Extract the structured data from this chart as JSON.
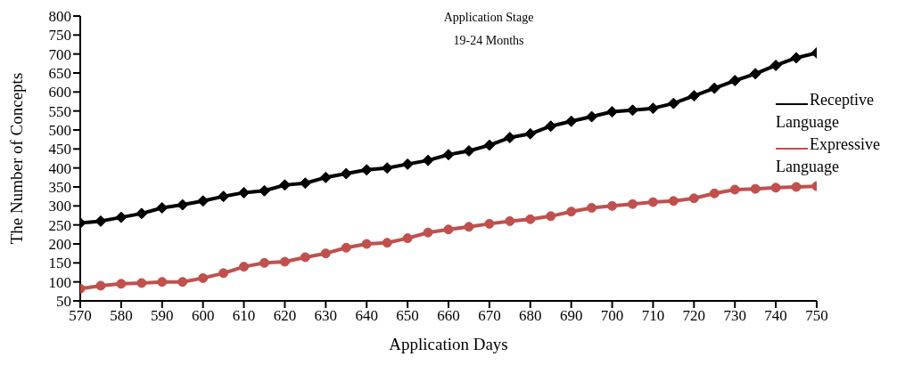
{
  "chart_data": {
    "type": "line",
    "title": "Application Stage",
    "subtitle": "19-24 Months",
    "xlabel": "Application Days",
    "ylabel": "The Number of Concepts",
    "x": [
      570,
      575,
      580,
      585,
      590,
      595,
      600,
      605,
      610,
      615,
      620,
      625,
      630,
      635,
      640,
      645,
      650,
      655,
      660,
      665,
      670,
      675,
      680,
      685,
      690,
      695,
      700,
      705,
      710,
      715,
      720,
      725,
      730,
      735,
      740,
      745,
      750
    ],
    "series": [
      {
        "name": "Receptive Language",
        "color": "#000000",
        "marker": "diamond",
        "values": [
          255,
          260,
          270,
          280,
          295,
          303,
          313,
          325,
          335,
          340,
          355,
          360,
          375,
          385,
          395,
          400,
          410,
          420,
          435,
          445,
          460,
          480,
          490,
          510,
          523,
          535,
          548,
          552,
          557,
          570,
          590,
          610,
          630,
          648,
          670,
          690,
          703
        ]
      },
      {
        "name": "Expressive Language",
        "color": "#c0504d",
        "marker": "circle",
        "values": [
          82,
          90,
          95,
          97,
          100,
          100,
          110,
          123,
          140,
          150,
          153,
          165,
          175,
          190,
          200,
          203,
          215,
          230,
          238,
          245,
          253,
          260,
          265,
          273,
          285,
          295,
          300,
          305,
          310,
          313,
          320,
          333,
          343,
          345,
          348,
          350,
          352
        ]
      }
    ],
    "xlim": [
      570,
      750
    ],
    "xticks": [
      570,
      580,
      590,
      600,
      610,
      620,
      630,
      640,
      650,
      660,
      670,
      680,
      690,
      700,
      710,
      720,
      730,
      740,
      750
    ],
    "ylim": [
      50,
      800
    ],
    "yticks": [
      50,
      100,
      150,
      200,
      250,
      300,
      350,
      400,
      450,
      500,
      550,
      600,
      650,
      700,
      750,
      800
    ],
    "grid": false,
    "legend": "right",
    "line_style": "solid"
  }
}
